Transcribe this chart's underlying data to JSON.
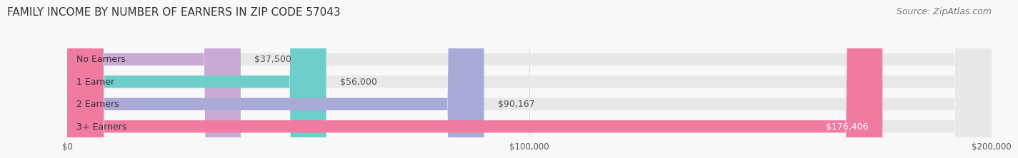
{
  "title": "FAMILY INCOME BY NUMBER OF EARNERS IN ZIP CODE 57043",
  "source": "Source: ZipAtlas.com",
  "categories": [
    "No Earners",
    "1 Earner",
    "2 Earners",
    "3+ Earners"
  ],
  "values": [
    37500,
    56000,
    90167,
    176406
  ],
  "value_labels": [
    "$37,500",
    "$56,000",
    "$90,167",
    "$176,406"
  ],
  "bar_colors": [
    "#c9a8d4",
    "#7acfcb",
    "#a8a8d8",
    "#f07aA0"
  ],
  "bar_bg_color": "#f0f0f0",
  "track_color": "#e8e8e8",
  "xlim": [
    0,
    200000
  ],
  "xtick_labels": [
    "$0",
    "$100,000",
    "$200,000"
  ],
  "xtick_values": [
    0,
    100000,
    200000
  ],
  "title_fontsize": 11,
  "source_fontsize": 9,
  "label_fontsize": 9,
  "value_fontsize": 9,
  "bg_color": "#f8f8f8",
  "bar_height": 0.55,
  "bar_colors_actual": [
    "#c9aad5",
    "#6ececa",
    "#a9aad8",
    "#f07aA0"
  ]
}
